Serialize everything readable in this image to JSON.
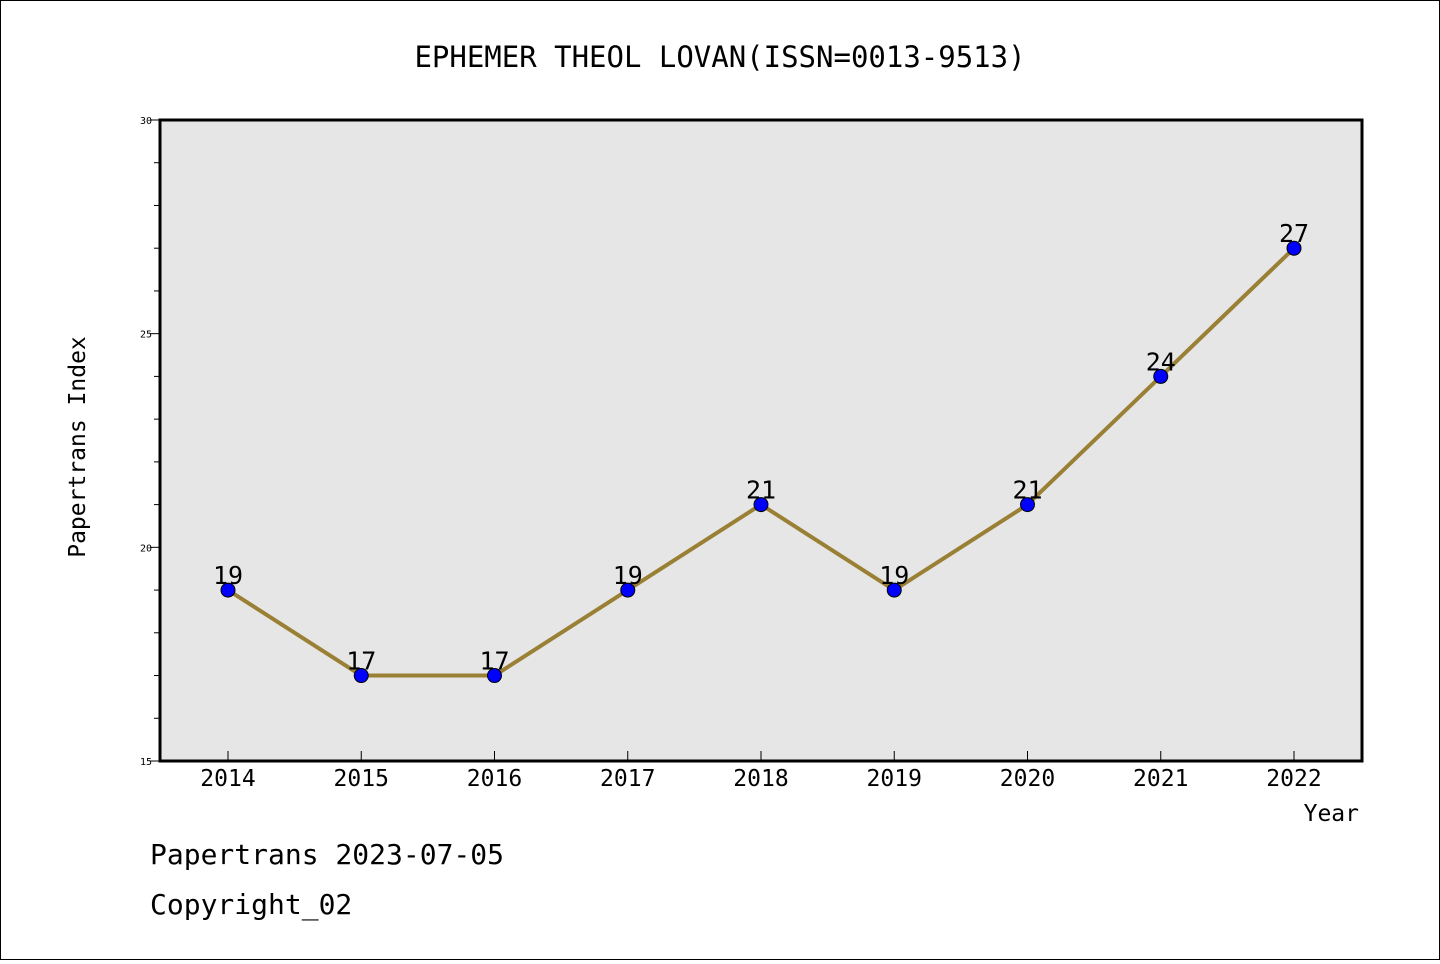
{
  "chart_data": {
    "type": "line",
    "title": "EPHEMER THEOL LOVAN(ISSN=0013-9513)",
    "xlabel": "Year",
    "ylabel": "Papertrans Index",
    "categories": [
      "2014",
      "2015",
      "2016",
      "2017",
      "2018",
      "2019",
      "2020",
      "2021",
      "2022"
    ],
    "series": [
      {
        "values": [
          19,
          17,
          17,
          19,
          21,
          19,
          21,
          24,
          27
        ]
      }
    ],
    "ylim": [
      15,
      30
    ],
    "yticks": [
      "15",
      "20",
      "25",
      "30"
    ],
    "grid": false,
    "colors": {
      "line": "#9a8035",
      "marker": "#0000ff",
      "plot_bg": "#e6e6e6"
    }
  },
  "footer": {
    "line1": "Papertrans 2023-07-05",
    "line2": "Copyright_02"
  }
}
